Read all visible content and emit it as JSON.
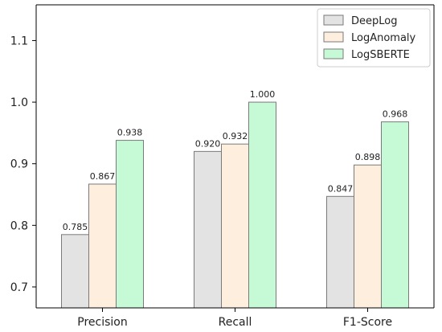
{
  "chart_data": {
    "type": "bar",
    "title": "",
    "xlabel": "",
    "ylabel": "",
    "categories": [
      "Precision",
      "Recall",
      "F1-Score"
    ],
    "series": [
      {
        "name": "DeepLog",
        "values": [
          0.785,
          0.92,
          0.847
        ],
        "color": "#e3e3e3"
      },
      {
        "name": "LogAnomaly",
        "values": [
          0.867,
          0.932,
          0.898
        ],
        "color": "#fdeedd"
      },
      {
        "name": "LogSBERTE",
        "values": [
          0.938,
          1.0,
          0.968
        ],
        "color": "#c6f9d6"
      }
    ],
    "value_labels": [
      [
        "0.785",
        "0.920",
        "0.847"
      ],
      [
        "0.867",
        "0.932",
        "0.898"
      ],
      [
        "0.938",
        "1.000",
        "0.968"
      ]
    ],
    "y_ticks": [
      0.7,
      0.8,
      0.9,
      1.0,
      1.1
    ],
    "y_tick_labels": [
      "0.7",
      "0.8",
      "0.9",
      "1.0",
      "1.1"
    ],
    "ylim": [
      0.666,
      1.158
    ],
    "grid": false,
    "legend_position": "top-right",
    "bar_edge_color": "#7a7a7a"
  }
}
